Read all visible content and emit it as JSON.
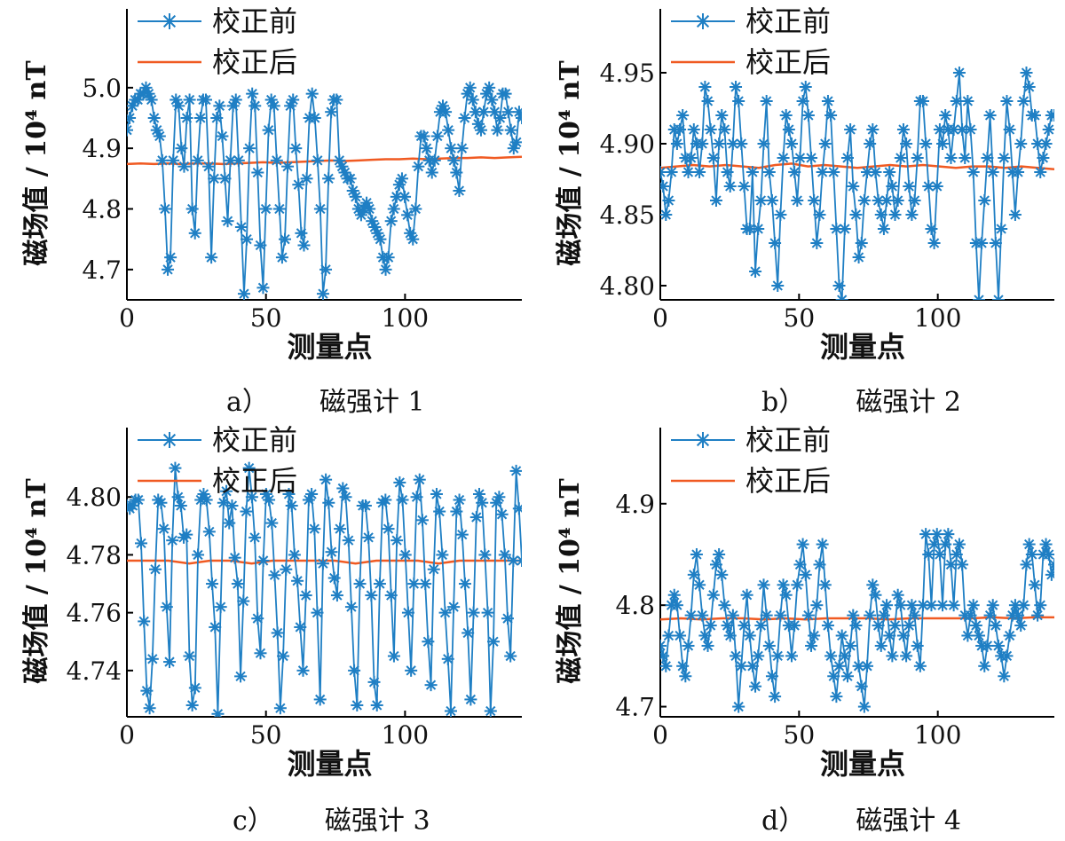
{
  "colors": {
    "before": "#1f7fc4",
    "after": "#f05a22",
    "axis": "#000000"
  },
  "series_names": [
    "校正前",
    "校正后"
  ],
  "xlabel": "测量点",
  "ylabel": "磁场值 / 10⁴ nT",
  "chart_data": [
    {
      "type": "line",
      "caption_letter": "a）",
      "caption_text": "磁强计 1",
      "xlim": [
        0,
        142
      ],
      "ylim": [
        4.65,
        5.13
      ],
      "xticks": [
        0,
        50,
        100
      ],
      "yticks": [
        4.7,
        4.8,
        4.9,
        5.0
      ],
      "ytick_labels": [
        "4.7",
        "4.8",
        "4.9",
        "5.0"
      ],
      "legend": "top-left",
      "series": [
        {
          "name": "校正前",
          "marker": "asterisk",
          "values": [
            4.93,
            4.95,
            4.97,
            4.98,
            4.98,
            4.99,
            4.99,
            5.0,
            4.99,
            4.98,
            4.95,
            4.93,
            4.92,
            4.88,
            4.8,
            4.7,
            4.72,
            4.88,
            4.98,
            4.97,
            4.9,
            4.87,
            4.95,
            4.98,
            4.8,
            4.76,
            4.88,
            4.95,
            4.98,
            4.98,
            4.87,
            4.72,
            4.85,
            4.95,
            4.97,
            4.92,
            4.85,
            4.78,
            4.88,
            4.97,
            4.98,
            4.88,
            4.77,
            4.66,
            4.75,
            4.9,
            4.99,
            4.97,
            4.86,
            4.74,
            4.67,
            4.8,
            4.93,
            4.98,
            4.97,
            4.88,
            4.8,
            4.72,
            4.75,
            4.87,
            4.97,
            4.98,
            4.9,
            4.84,
            4.76,
            4.74,
            4.85,
            4.95,
            4.99,
            4.95,
            4.88,
            4.8,
            4.66,
            4.7,
            4.85,
            4.96,
            4.98,
            4.98,
            4.88,
            4.87,
            4.86,
            4.85,
            4.85,
            4.83,
            4.82,
            4.8,
            4.79,
            4.8,
            4.81,
            4.8,
            4.78,
            4.77,
            4.76,
            4.75,
            4.72,
            4.7,
            4.72,
            4.78,
            4.8,
            4.82,
            4.84,
            4.85,
            4.82,
            4.79,
            4.76,
            4.75,
            4.8,
            4.87,
            4.92,
            4.92,
            4.9,
            4.88,
            4.86,
            4.88,
            4.92,
            4.96,
            4.97,
            4.96,
            4.93,
            4.9,
            4.88,
            4.86,
            4.83,
            4.9,
            4.95,
            4.99,
            5.0,
            4.98,
            4.96,
            4.94,
            4.93,
            4.96,
            4.99,
            5.0,
            4.98,
            4.96,
            4.93,
            4.95,
            4.99,
            4.99,
            4.96,
            4.93,
            4.9,
            4.91,
            4.96,
            4.95
          ]
        },
        {
          "name": "校正后",
          "marker": "none",
          "values": [
            4.874,
            4.875,
            4.874,
            4.875,
            4.874,
            4.875,
            4.875,
            4.874,
            4.875,
            4.876,
            4.877,
            4.876,
            4.877,
            4.878,
            4.879,
            4.88,
            4.879,
            4.88,
            4.881,
            4.882,
            4.882,
            4.883,
            4.882,
            4.883,
            4.884,
            4.884,
            4.885,
            4.884,
            4.885,
            4.886
          ]
        }
      ]
    },
    {
      "type": "line",
      "caption_letter": "b）",
      "caption_text": "磁强计 2",
      "xlim": [
        0,
        142
      ],
      "ylim": [
        4.79,
        4.995
      ],
      "xticks": [
        0,
        50,
        100
      ],
      "yticks": [
        4.8,
        4.85,
        4.9,
        4.95
      ],
      "ytick_labels": [
        "4.80",
        "4.85",
        "4.90",
        "4.95"
      ],
      "legend": "top-left",
      "series": [
        {
          "name": "校正前",
          "marker": "asterisk",
          "values": [
            4.88,
            4.87,
            4.85,
            4.86,
            4.88,
            4.91,
            4.9,
            4.91,
            4.92,
            4.89,
            4.88,
            4.89,
            4.91,
            4.9,
            4.88,
            4.9,
            4.94,
            4.93,
            4.91,
            4.89,
            4.86,
            4.9,
            4.92,
            4.91,
            4.88,
            4.87,
            4.9,
            4.94,
            4.93,
            4.9,
            4.87,
            4.84,
            4.84,
            4.88,
            4.81,
            4.84,
            4.86,
            4.9,
            4.93,
            4.88,
            4.86,
            4.83,
            4.8,
            4.85,
            4.89,
            4.92,
            4.91,
            4.9,
            4.88,
            4.86,
            4.89,
            4.93,
            4.94,
            4.92,
            4.89,
            4.86,
            4.83,
            4.85,
            4.88,
            4.9,
            4.93,
            4.92,
            4.88,
            4.84,
            4.8,
            4.79,
            4.84,
            4.89,
            4.91,
            4.87,
            4.85,
            4.82,
            4.83,
            4.86,
            4.88,
            4.9,
            4.91,
            4.88,
            4.86,
            4.85,
            4.84,
            4.86,
            4.88,
            4.87,
            4.85,
            4.86,
            4.89,
            4.91,
            4.9,
            4.87,
            4.85,
            4.86,
            4.89,
            4.93,
            4.93,
            4.9,
            4.87,
            4.84,
            4.83,
            4.87,
            4.91,
            4.9,
            4.92,
            4.91,
            4.89,
            4.91,
            4.93,
            4.95,
            4.91,
            4.89,
            4.93,
            4.91,
            4.88,
            4.83,
            4.79,
            4.83,
            4.86,
            4.89,
            4.92,
            4.88,
            4.83,
            4.79,
            4.84,
            4.89,
            4.93,
            4.91,
            4.88,
            4.85,
            4.88,
            4.9,
            4.93,
            4.95,
            4.94,
            4.92,
            4.92,
            4.9,
            4.88,
            4.89,
            4.9,
            4.91,
            4.92,
            4.92
          ]
        },
        {
          "name": "校正后",
          "marker": "none",
          "values": [
            4.883,
            4.884,
            4.885,
            4.884,
            4.885,
            4.884,
            4.883,
            4.885,
            4.886,
            4.884,
            4.885,
            4.884,
            4.883,
            4.884,
            4.885,
            4.884,
            4.885,
            4.884,
            4.883,
            4.884,
            4.884,
            4.883,
            4.884,
            4.883,
            4.882
          ]
        }
      ]
    },
    {
      "type": "line",
      "caption_letter": "c）",
      "caption_text": "磁强计 3",
      "xlim": [
        0,
        142
      ],
      "ylim": [
        4.724,
        4.824
      ],
      "xticks": [
        0,
        50,
        100
      ],
      "yticks": [
        4.74,
        4.76,
        4.78,
        4.8
      ],
      "ytick_labels": [
        "4.74",
        "4.76",
        "4.78",
        "4.80"
      ],
      "legend": "top-left",
      "series": [
        {
          "name": "校正前",
          "marker": "asterisk",
          "values": [
            4.797,
            4.796,
            4.797,
            4.799,
            4.799,
            4.784,
            4.757,
            4.733,
            4.727,
            4.744,
            4.775,
            4.799,
            4.798,
            4.789,
            4.762,
            4.743,
            4.785,
            4.81,
            4.8,
            4.797,
            4.786,
            4.787,
            4.745,
            4.728,
            4.734,
            4.78,
            4.799,
            4.801,
            4.799,
            4.788,
            4.77,
            4.755,
            4.725,
            4.762,
            4.798,
            4.802,
            4.791,
            4.797,
            4.779,
            4.77,
            4.738,
            4.764,
            4.795,
            4.81,
            4.8,
            4.786,
            4.758,
            4.746,
            4.778,
            4.801,
            4.799,
            4.791,
            4.773,
            4.753,
            4.727,
            4.745,
            4.775,
            4.801,
            4.797,
            4.78,
            4.771,
            4.755,
            4.74,
            4.766,
            4.799,
            4.801,
            4.789,
            4.76,
            4.73,
            4.777,
            4.806,
            4.798,
            4.781,
            4.772,
            4.766,
            4.789,
            4.803,
            4.8,
            4.785,
            4.762,
            4.74,
            4.728,
            4.77,
            4.797,
            4.797,
            4.786,
            4.766,
            4.736,
            4.728,
            4.77,
            4.798,
            4.799,
            4.789,
            4.766,
            4.745,
            4.785,
            4.805,
            4.799,
            4.78,
            4.76,
            4.74,
            4.77,
            4.8,
            4.806,
            4.792,
            4.77,
            4.75,
            4.735,
            4.775,
            4.801,
            4.795,
            4.78,
            4.76,
            4.744,
            4.726,
            4.762,
            4.795,
            4.799,
            4.787,
            4.77,
            4.753,
            4.73,
            4.76,
            4.793,
            4.801,
            4.798,
            4.78,
            4.76,
            4.726,
            4.75,
            4.798,
            4.8,
            4.794,
            4.78,
            4.758,
            4.745,
            4.778,
            4.809,
            4.796,
            4.778
          ]
        },
        {
          "name": "校正后",
          "marker": "none",
          "values": [
            4.778,
            4.778,
            4.778,
            4.777,
            4.778,
            4.778,
            4.777,
            4.778,
            4.778,
            4.778,
            4.778,
            4.777,
            4.778,
            4.778,
            4.778,
            4.777,
            4.778,
            4.778,
            4.778,
            4.778
          ]
        }
      ]
    },
    {
      "type": "line",
      "caption_letter": "d）",
      "caption_text": "磁强计 4",
      "xlim": [
        0,
        142
      ],
      "ylim": [
        4.69,
        4.975
      ],
      "xticks": [
        0,
        50,
        100
      ],
      "yticks": [
        4.7,
        4.8,
        4.9
      ],
      "ytick_labels": [
        "4.7",
        "4.8",
        "4.9"
      ],
      "legend": "top-left",
      "series": [
        {
          "name": "校正前",
          "marker": "asterisk",
          "values": [
            4.76,
            4.75,
            4.74,
            4.77,
            4.8,
            4.81,
            4.8,
            4.77,
            4.74,
            4.73,
            4.76,
            4.79,
            4.83,
            4.85,
            4.82,
            4.79,
            4.77,
            4.76,
            4.78,
            4.81,
            4.84,
            4.85,
            4.83,
            4.8,
            4.78,
            4.77,
            4.79,
            4.75,
            4.7,
            4.74,
            4.78,
            4.81,
            4.77,
            4.74,
            4.72,
            4.75,
            4.78,
            4.82,
            4.79,
            4.76,
            4.73,
            4.71,
            4.75,
            4.79,
            4.82,
            4.81,
            4.78,
            4.75,
            4.78,
            4.82,
            4.84,
            4.86,
            4.83,
            4.79,
            4.76,
            4.77,
            4.8,
            4.84,
            4.86,
            4.82,
            4.78,
            4.75,
            4.73,
            4.71,
            4.74,
            4.77,
            4.75,
            4.73,
            4.76,
            4.79,
            4.78,
            4.74,
            4.72,
            4.7,
            4.74,
            4.79,
            4.82,
            4.81,
            4.78,
            4.76,
            4.79,
            4.8,
            4.77,
            4.75,
            4.78,
            4.81,
            4.8,
            4.77,
            4.75,
            4.78,
            4.8,
            4.79,
            4.76,
            4.74,
            4.8,
            4.87,
            4.85,
            4.8,
            4.86,
            4.87,
            4.85,
            4.8,
            4.86,
            4.87,
            4.84,
            4.8,
            4.85,
            4.86,
            4.84,
            4.79,
            4.77,
            4.79,
            4.8,
            4.78,
            4.77,
            4.76,
            4.74,
            4.76,
            4.79,
            4.8,
            4.78,
            4.76,
            4.75,
            4.73,
            4.75,
            4.77,
            4.79,
            4.8,
            4.79,
            4.78,
            4.8,
            4.84,
            4.86,
            4.85,
            4.82,
            4.79,
            4.8,
            4.85,
            4.86,
            4.85,
            4.83,
            4.84
          ]
        },
        {
          "name": "校正后",
          "marker": "none",
          "values": [
            4.786,
            4.787,
            4.786,
            4.787,
            4.787,
            4.786,
            4.787,
            4.786,
            4.787,
            4.787,
            4.787,
            4.786,
            4.787,
            4.787,
            4.787,
            4.787,
            4.788,
            4.787,
            4.788,
            4.788
          ]
        }
      ]
    }
  ]
}
